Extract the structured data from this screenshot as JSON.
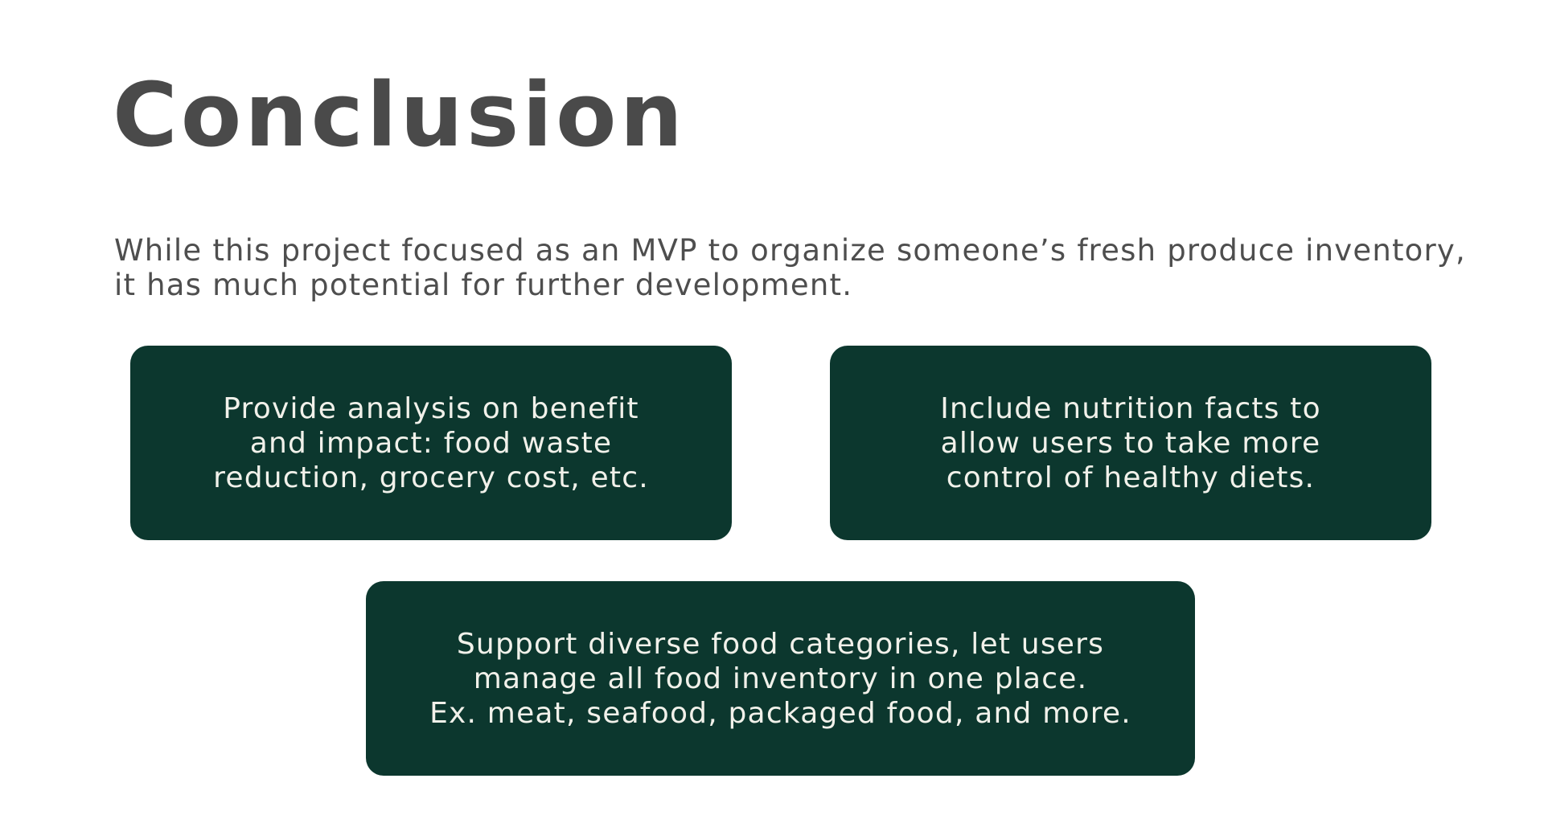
{
  "slide": {
    "title": "Conclusion",
    "intro_lines": [
      "While this project focused as an MVP to organize someone’s fresh produce inventory,",
      "it has much potential for further development."
    ],
    "cards": [
      {
        "lines": [
          "Provide analysis on benefit",
          "and impact: food waste",
          "reduction, grocery cost, etc."
        ]
      },
      {
        "lines": [
          "Include nutrition facts to",
          "allow users to take more",
          "control of healthy diets."
        ]
      },
      {
        "lines": [
          "Support diverse food categories, let users",
          "manage all food inventory in one place.",
          "Ex. meat, seafood, packaged food, and more."
        ]
      }
    ]
  },
  "colors": {
    "background": "#ffffff",
    "title_text": "#4a4a4a",
    "body_text": "#4e4e4e",
    "card_background": "#0c372e",
    "card_text": "#f1f1ea"
  }
}
